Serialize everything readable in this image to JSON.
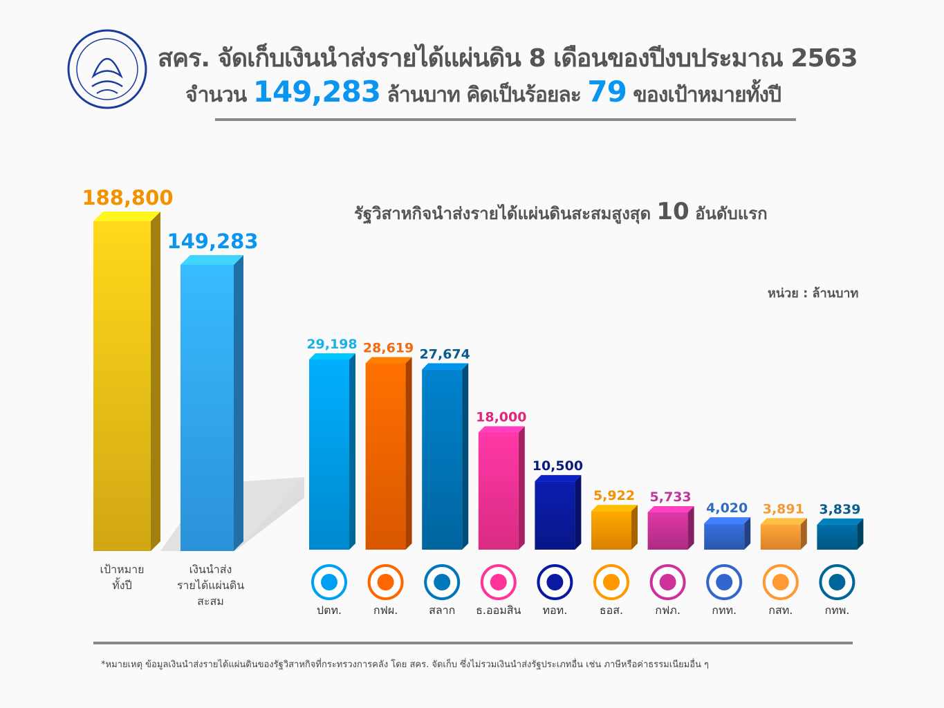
{
  "header": {
    "line1": "สคร. จัดเก็บเงินนำส่งรายได้แผ่นดิน 8 เดือนของปีงบประมาณ 2563",
    "line2_pre": "จำนวน",
    "line2_amount": "149,283",
    "line2_mid": "ล้านบาท คิดเป็นร้อยละ",
    "line2_pct": "79",
    "line2_post": "ของเป้าหมายทั้งปี",
    "logo_text": "สำนักงานคณะกรรมการนโยบายรัฐวิสาหกิจ"
  },
  "subtitle_pre": "รัฐวิสาหกิจนำส่งรายได้แผ่นดินสะสมสูงสุด",
  "subtitle_num": "10",
  "subtitle_post": "อันดับแรก",
  "unit": "หน่วย : ล้านบาท",
  "footnote": "*หมายเหตุ ข้อมูลเงินนำส่งรายได้แผ่นดินของรัฐวิสาหกิจที่กระทรวงการคลัง โดย สคร. จัดเก็บ ซึ่งไม่รวมเงินนำส่งรัฐประเภทอื่น เช่น ภาษีหรือค่าธรรมเนียมอื่น ๆ",
  "chart_data": [
    {
      "type": "bar",
      "categories": [
        "เป้าหมาย\nทั้งปี",
        "เงินนำส่ง\nรายได้แผ่นดิน\nสะสม"
      ],
      "values": [
        188800,
        149283
      ],
      "labels": [
        "188,800",
        "149,283"
      ],
      "colors": [
        "#f5c518",
        "#33aaff"
      ],
      "label_colors": [
        "#f39200",
        "#0a96f0"
      ]
    },
    {
      "type": "bar",
      "categories": [
        "ปตท.",
        "กฟผ.",
        "สลาก",
        "ธ.ออมสิน",
        "ทอท.",
        "ธอส.",
        "กฟภ.",
        "กทท.",
        "กสท.",
        "กทพ."
      ],
      "values": [
        29198,
        28619,
        27674,
        18000,
        10500,
        5922,
        5733,
        4020,
        3891,
        3839
      ],
      "labels": [
        "29,198",
        "28,619",
        "27,674",
        "18,000",
        "10,500",
        "5,922",
        "5,733",
        "4,020",
        "3,891",
        "3,839"
      ],
      "colors": [
        "#00a0f0",
        "#ff6600",
        "#0077bb",
        "#ff3399",
        "#0a1aa0",
        "#ff9900",
        "#cc3399",
        "#3366cc",
        "#ff9933",
        "#006699"
      ],
      "label_colors": [
        "#1ab0e8",
        "#f06a10",
        "#0b5c8c",
        "#e0257a",
        "#0a1a80",
        "#f39200",
        "#c0369a",
        "#2d6cc0",
        "#f59a30",
        "#0b5c8c"
      ],
      "logos": [
        "pttp-icon",
        "egat-icon",
        "lottery-icon",
        "gsb-icon",
        "aot-icon",
        "ghb-icon",
        "pea-icon",
        "port-icon",
        "cat-icon",
        "exat-icon"
      ]
    }
  ]
}
